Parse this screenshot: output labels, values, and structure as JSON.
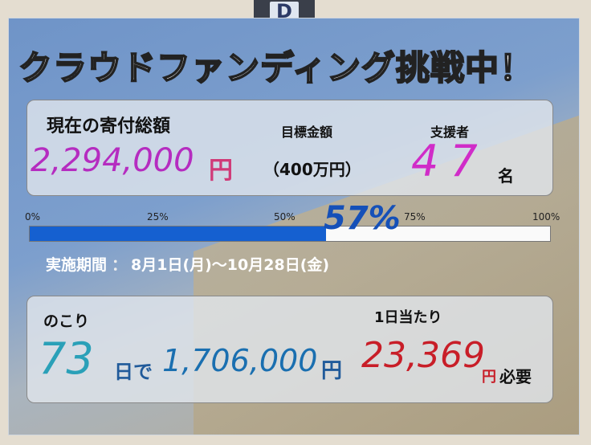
{
  "tab_label": "D",
  "title": "クラウドファンディング挑戦中！",
  "current": {
    "label": "現在の寄付総額",
    "amount": "2,294,000",
    "unit": "円"
  },
  "goal": {
    "label": "目標金額",
    "value": "（400万円）"
  },
  "supporters": {
    "label": "支援者",
    "count": "47",
    "unit": "名"
  },
  "progress": {
    "ticks": [
      "0%",
      "25%",
      "50%",
      "75%",
      "100%"
    ],
    "percent_label": "57%",
    "value_percent": 57,
    "fill_color": "#1560d0"
  },
  "period": {
    "label": "実施期間",
    "separator": "：",
    "dates": "8月1日(月)～10月28日(金)"
  },
  "remaining": {
    "label": "のこり",
    "days": "73",
    "days_text": "日で",
    "amount": "1,706,000",
    "unit": "円"
  },
  "per_day": {
    "label": "1日当たり",
    "amount": "23,369",
    "unit": "円",
    "suffix": "必要"
  }
}
